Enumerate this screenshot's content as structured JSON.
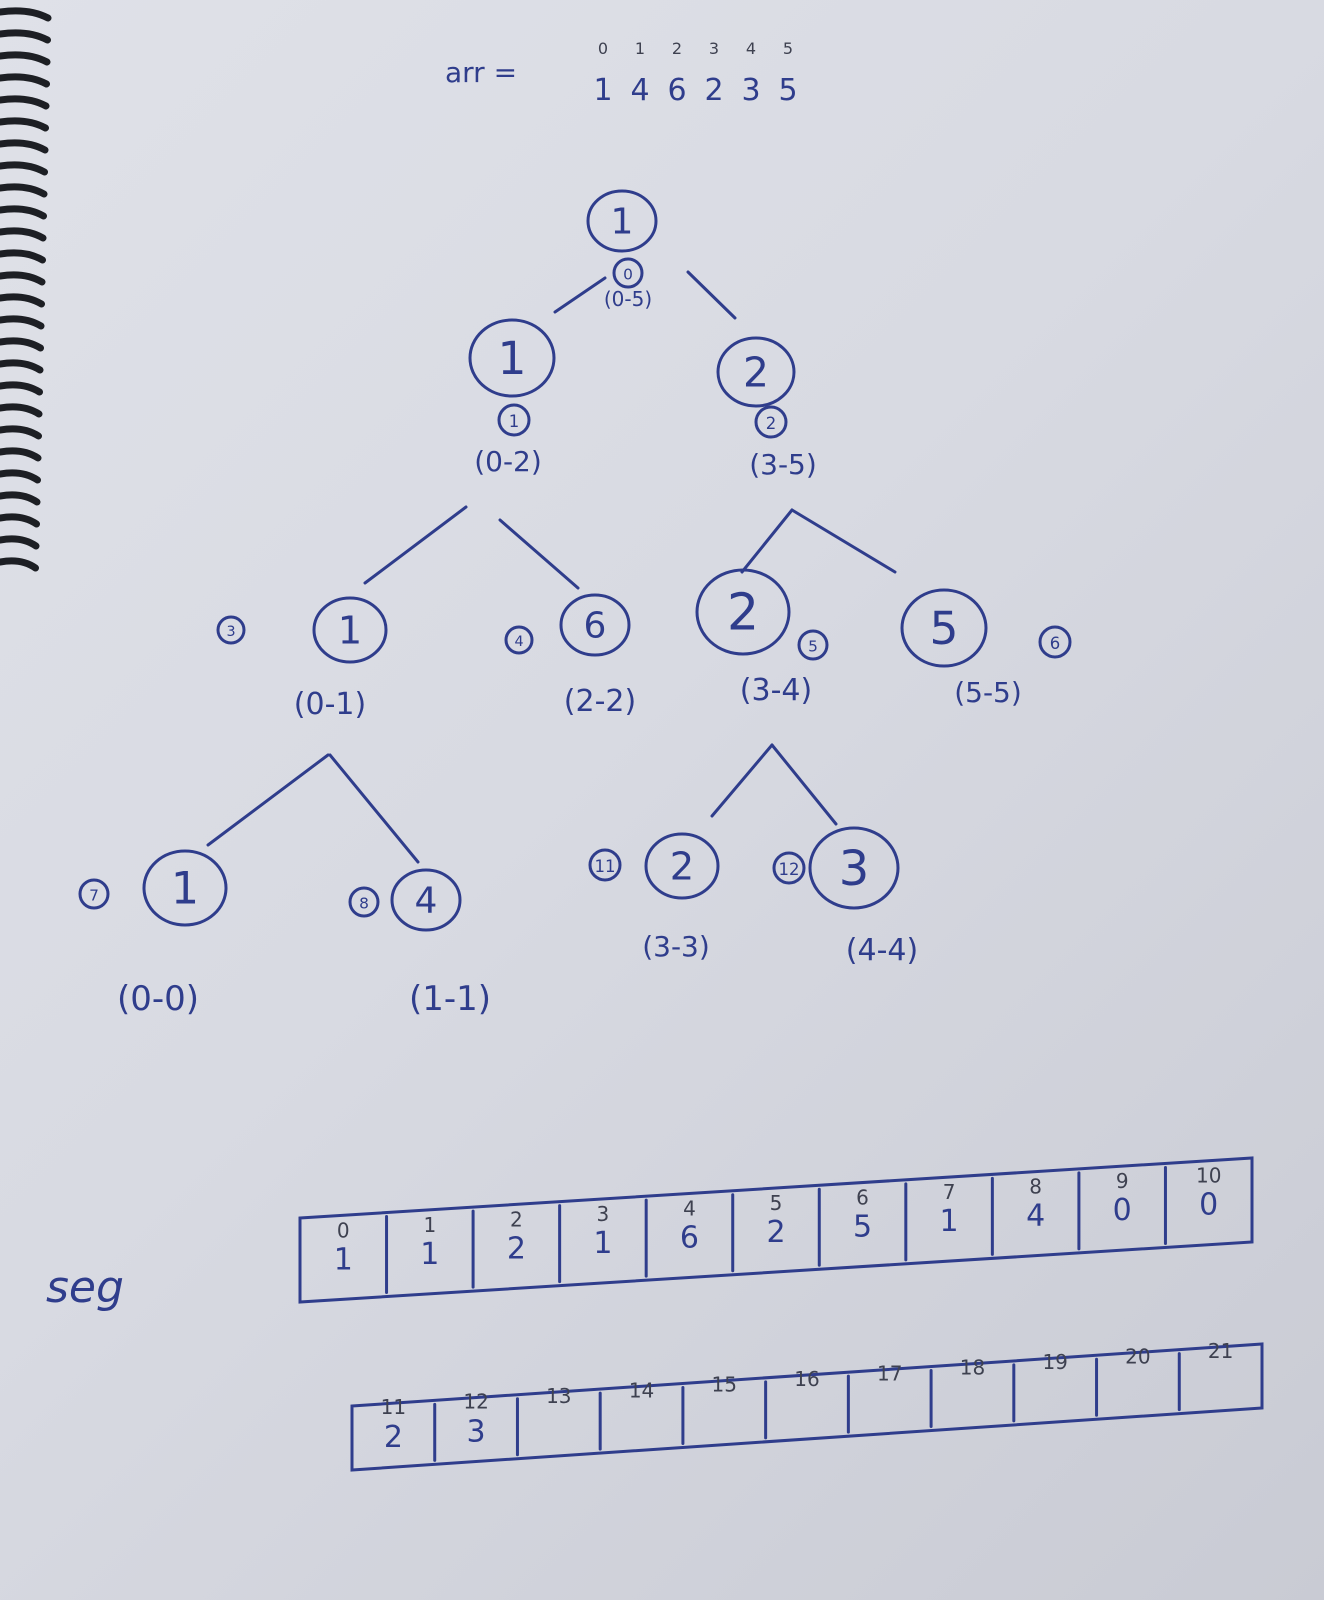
{
  "arr": {
    "label": "arr =",
    "indices": [
      "0",
      "1",
      "2",
      "3",
      "4",
      "5"
    ],
    "values": [
      "1",
      "4",
      "6",
      "2",
      "3",
      "5"
    ]
  },
  "tree": {
    "nodes": [
      {
        "id": "n0",
        "value": "1",
        "index": "0",
        "range": "(0-5)"
      },
      {
        "id": "n1",
        "value": "1",
        "index": "1",
        "range": "(0-2)"
      },
      {
        "id": "n2",
        "value": "2",
        "index": "2",
        "range": "(3-5)"
      },
      {
        "id": "n3",
        "value": "1",
        "index": "3",
        "range": "(0-1)"
      },
      {
        "id": "n4",
        "value": "6",
        "index": "4",
        "range": "(2-2)"
      },
      {
        "id": "n5",
        "value": "2",
        "index": "5",
        "range": "(3-4)"
      },
      {
        "id": "n6",
        "value": "5",
        "index": "6",
        "range": "(5-5)"
      },
      {
        "id": "n7",
        "value": "1",
        "index": "7",
        "range": "(0-0)"
      },
      {
        "id": "n8",
        "value": "4",
        "index": "8",
        "range": "(1-1)"
      },
      {
        "id": "n11",
        "value": "2",
        "index": "11",
        "range": "(3-3)"
      },
      {
        "id": "n12",
        "value": "3",
        "index": "12",
        "range": "(4-4)"
      }
    ]
  },
  "seg": {
    "label": "seg",
    "row1": {
      "indices": [
        "0",
        "1",
        "2",
        "3",
        "4",
        "5",
        "6",
        "7",
        "8",
        "9",
        "10"
      ],
      "values": [
        "1",
        "1",
        "2",
        "1",
        "6",
        "2",
        "5",
        "1",
        "4",
        "0",
        "0"
      ]
    },
    "row2": {
      "indices": [
        "11",
        "12",
        "13",
        "14",
        "15",
        "16",
        "17",
        "18",
        "19",
        "20",
        "21"
      ],
      "values": [
        "2",
        "3",
        "",
        "",
        "",
        "",
        "",
        "",
        "",
        "",
        ""
      ]
    }
  }
}
